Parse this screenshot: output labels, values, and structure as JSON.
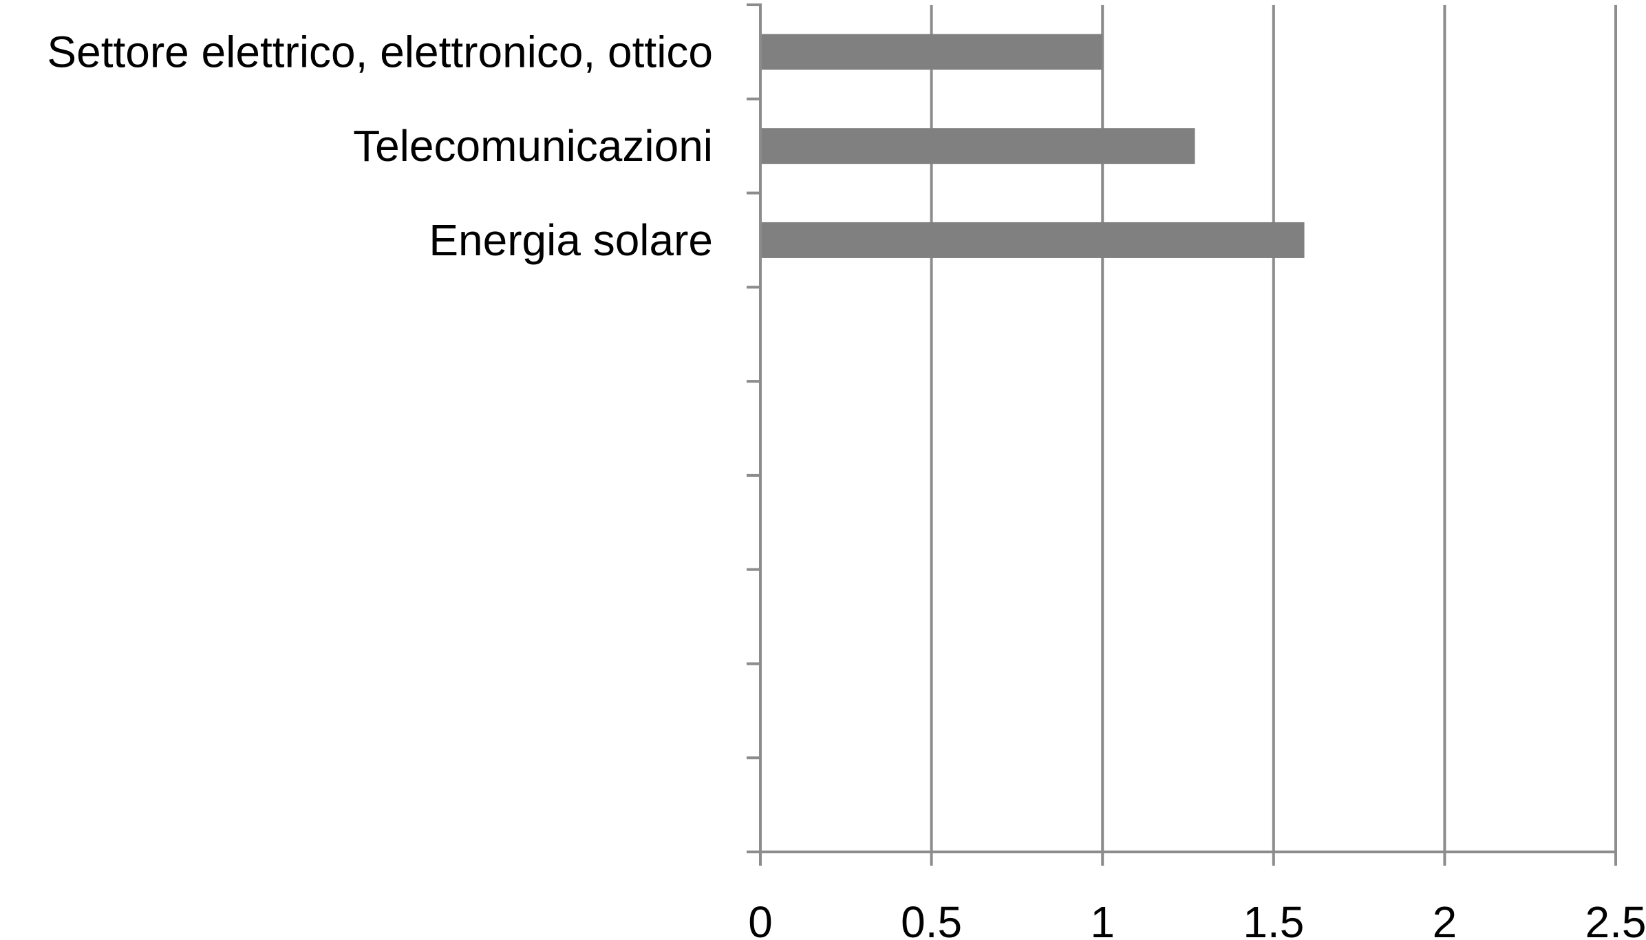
{
  "chart_data": {
    "type": "bar",
    "orientation": "horizontal",
    "categories": [
      "Settore elettrico,  elettronico,  ottico",
      "Telecomunicazioni",
      "Energia solare",
      "",
      "",
      "",
      "",
      "",
      ""
    ],
    "values": [
      1.0,
      1.27,
      1.59,
      null,
      null,
      null,
      null,
      null,
      null
    ],
    "x_ticks": [
      "0",
      "0.5",
      "1",
      "1.5",
      "2",
      "2.5"
    ],
    "xlim": [
      0,
      2.5
    ],
    "grid": "vertical",
    "colors": {
      "bar": "#808080",
      "grid": "#8c8c8c",
      "axis": "#8c8c8c",
      "text": "#000000"
    }
  }
}
